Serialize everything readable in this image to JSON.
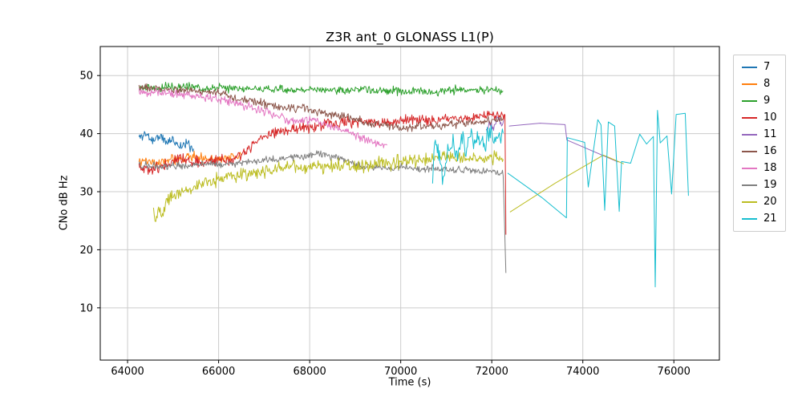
{
  "chart_data": {
    "type": "line",
    "title": "Z3R ant_0 GLONASS L1(P)",
    "xlabel": "Time (s)",
    "ylabel": "CNo dB Hz",
    "xlim": [
      63400,
      77000
    ],
    "ylim": [
      1,
      55
    ],
    "xticks": [
      64000,
      66000,
      68000,
      70000,
      72000,
      74000,
      76000
    ],
    "yticks": [
      10,
      20,
      30,
      40,
      50
    ],
    "grid": true,
    "legend_position": "outside-right",
    "series": [
      {
        "name": "7",
        "color": "#1f77b4",
        "segments": [
          {
            "noise": 0.45,
            "x": [
              64250,
              64400,
              64550,
              64700,
              64850,
              65000,
              65150,
              65300,
              65450
            ],
            "y": [
              39.3,
              40.0,
              38.8,
              39.6,
              38.5,
              39.0,
              37.8,
              38.3,
              37.4
            ]
          }
        ]
      },
      {
        "name": "8",
        "color": "#ff7f0e",
        "segments": [
          {
            "noise": 0.4,
            "x": [
              64250,
              64600,
              65000,
              65400,
              65800,
              66200,
              66500
            ],
            "y": [
              35.3,
              35.0,
              35.5,
              36.0,
              35.6,
              35.8,
              36.2
            ]
          }
        ]
      },
      {
        "name": "9",
        "color": "#2ca02c",
        "segments": [
          {
            "noise": 0.35,
            "x": [
              64250,
              64700,
              65200,
              65700,
              66200,
              66700,
              67200,
              67700,
              68200,
              68700,
              69200,
              69700,
              70200,
              70700,
              71200,
              71700,
              72000,
              72250
            ],
            "y": [
              48.0,
              47.9,
              48.1,
              47.8,
              47.9,
              47.7,
              47.8,
              47.5,
              47.7,
              47.4,
              47.5,
              47.3,
              47.4,
              47.2,
              47.6,
              47.5,
              47.7,
              47.3
            ]
          }
        ]
      },
      {
        "name": "10",
        "color": "#d62728",
        "segments": [
          {
            "noise": 0.45,
            "x": [
              64250,
              64500,
              64800,
              65100,
              65400,
              65700,
              66000,
              66300,
              66600,
              66900,
              67200,
              67500,
              67800,
              68100,
              68400,
              68700,
              69000,
              69300,
              69600,
              70000,
              70400,
              70800,
              71200,
              71600,
              72000,
              72200,
              72290,
              72310
            ],
            "y": [
              34.2,
              33.6,
              34.5,
              35.8,
              35.2,
              35.0,
              35.5,
              35.3,
              37.0,
              39.0,
              40.0,
              40.5,
              41.2,
              41.0,
              41.6,
              42.0,
              41.8,
              42.2,
              42.0,
              42.3,
              42.5,
              42.4,
              42.6,
              42.8,
              43.2,
              43.0,
              43.2,
              22.6
            ]
          }
        ]
      },
      {
        "name": "11",
        "color": "#9467bd",
        "segments": [
          {
            "noise": 0.35,
            "x": [
              71880,
              71960,
              72040,
              72120,
              72200,
              72260
            ],
            "y": [
              40.3,
              42.2,
              41.0,
              42.5,
              41.6,
              42.3
            ]
          },
          {
            "noise": 0,
            "x": [
              72380,
              73060,
              73610,
              73650,
              74780
            ],
            "y": [
              41.3,
              41.8,
              41.55,
              38.9,
              35.1
            ]
          }
        ]
      },
      {
        "name": "16",
        "color": "#8c564b",
        "segments": [
          {
            "noise": 0.35,
            "x": [
              64250,
              64500,
              65000,
              65500,
              66000,
              66300,
              66700,
              67000,
              67400,
              67800,
              68200,
              68600,
              69000,
              69300,
              69600,
              70000,
              70400,
              70800,
              71200,
              71600,
              72000,
              72250
            ],
            "y": [
              48.2,
              47.8,
              47.6,
              47.3,
              47.0,
              46.3,
              45.5,
              45.2,
              44.3,
              44.5,
              43.8,
              43.2,
              42.5,
              41.7,
              41.5,
              40.9,
              41.2,
              41.3,
              41.6,
              42.0,
              42.3,
              42.6
            ]
          }
        ]
      },
      {
        "name": "18",
        "color": "#e377c2",
        "segments": [
          {
            "noise": 0.35,
            "x": [
              64250,
              64700,
              65100,
              65500,
              66000,
              66500,
              67000,
              67600,
              68000,
              68400,
              68800,
              69200,
              69500,
              69700
            ],
            "y": [
              47.2,
              47.0,
              46.8,
              46.4,
              46.0,
              45.0,
              43.8,
              42.2,
              42.4,
              41.5,
              40.3,
              39.0,
              38.3,
              38.0
            ]
          }
        ]
      },
      {
        "name": "19",
        "color": "#7f7f7f",
        "segments": [
          {
            "noise": 0.3,
            "x": [
              64250,
              65000,
              65500,
              66000,
              66500,
              67000,
              67500,
              68000,
              68200,
              68500,
              68800,
              69200,
              69600,
              70000,
              70400,
              70800,
              71200,
              71600,
              72000,
              72250,
              72310
            ],
            "y": [
              34.6,
              34.4,
              34.6,
              34.8,
              35.0,
              35.3,
              35.8,
              36.2,
              36.5,
              35.9,
              35.5,
              34.3,
              34.0,
              34.2,
              34.0,
              33.9,
              33.8,
              33.6,
              33.4,
              33.2,
              16.0
            ]
          }
        ]
      },
      {
        "name": "20",
        "color": "#bcbd22",
        "segments": [
          {
            "noise": 0.55,
            "x": [
              64570,
              64620,
              64680,
              64750,
              64850,
              65000,
              65300,
              65600,
              66000,
              66400,
              66800,
              67200,
              67600,
              67900,
              68200,
              68600,
              69000,
              69400,
              69800,
              70200,
              70600,
              71000,
              71400,
              71800,
              72100,
              72250
            ],
            "y": [
              26.5,
              24.3,
              28.0,
              26.0,
              28.5,
              29.2,
              30.5,
              31.3,
              32.2,
              32.8,
              33.2,
              33.8,
              34.6,
              33.9,
              34.2,
              34.5,
              34.3,
              34.8,
              35.0,
              35.3,
              35.5,
              36.0,
              35.6,
              35.5,
              35.8,
              35.6
            ]
          },
          {
            "noise": 0,
            "x": [
              72400,
              73400,
              74450,
              74900
            ],
            "y": [
              26.5,
              31.5,
              36.3,
              34.8
            ]
          }
        ]
      },
      {
        "name": "21",
        "color": "#17becf",
        "segments": [
          {
            "noise": 0.9,
            "x": [
              70700,
              70760,
              70850,
              70950,
              71050,
              71150,
              71250,
              71350,
              71450,
              71550,
              71650,
              71750,
              71850,
              71950,
              72050,
              72150,
              72250
            ],
            "y": [
              33.3,
              38.8,
              36.5,
              31.6,
              37.5,
              38.8,
              36.0,
              39.5,
              37.0,
              40.2,
              38.0,
              40.5,
              37.5,
              41.0,
              39.0,
              40.3,
              40.1
            ]
          },
          {
            "noise": 0,
            "x": [
              72350,
              73100,
              73640,
              73660,
              74040,
              74120,
              74330,
              74400,
              74480,
              74560,
              74700,
              74800,
              74850,
              75050,
              75250,
              75400,
              75550,
              75590,
              75640,
              75700,
              75850,
              75950,
              76050,
              76250,
              76320
            ],
            "y": [
              33.2,
              29.0,
              25.5,
              39.3,
              38.5,
              30.8,
              42.4,
              41.5,
              26.8,
              42.0,
              41.3,
              26.6,
              35.2,
              34.9,
              39.9,
              38.2,
              39.5,
              13.6,
              44.0,
              38.4,
              39.6,
              29.6,
              43.3,
              43.5,
              29.3
            ]
          }
        ]
      }
    ]
  }
}
